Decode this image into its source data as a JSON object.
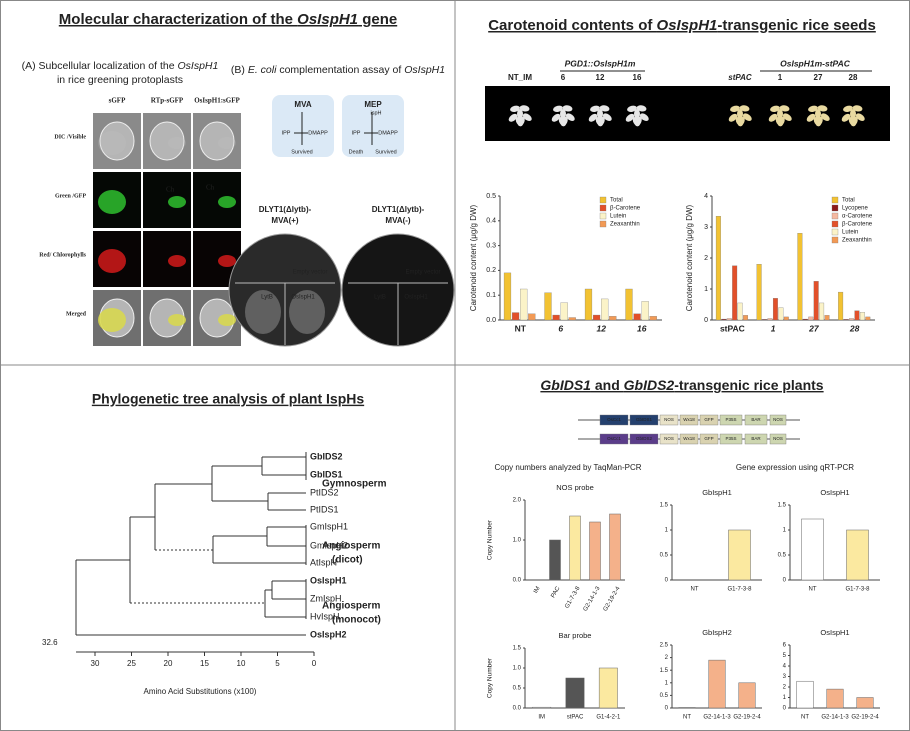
{
  "panels": {
    "characterization": {
      "title": [
        "Molecular characterization of the ",
        "OsIspH1",
        " gene"
      ],
      "localization": {
        "caption": [
          "(A) Subcellular localization of the ",
          "OsIspH1",
          "in rice greening protoplasts"
        ],
        "columns": [
          "sGFP",
          "RTp-sGFP",
          "OsIspH1:sGFP"
        ],
        "rows": [
          "DIC /Visible",
          "Green /GFP",
          "Red/ Chlorophylls",
          "Merged"
        ],
        "marker": "Ch"
      },
      "complementation": {
        "caption": [
          "(B) ",
          "E. coli",
          " complementation assay of ",
          "OsIspH1"
        ],
        "mva": {
          "name": "MVA",
          "texts": [
            "IPP",
            "DMAPP",
            "Survived"
          ]
        },
        "mep": {
          "name": "MEP",
          "texts": [
            "ispH",
            "IPP",
            "DMAPP",
            "Death",
            "Survived"
          ]
        },
        "plates": [
          {
            "label": [
              "DLYT1(Δlytb)-",
              "MVA(+)"
            ],
            "sectors": [
              "Empty vector",
              "LytB",
              "OsIspH1"
            ]
          },
          {
            "label": [
              "DLYT1(Δlytb)-",
              "MVA(-)"
            ],
            "sectors": [
              "Empty vector",
              "LytB",
              "OsIspH1"
            ]
          }
        ]
      }
    },
    "seeds": {
      "title": [
        "Carotenoid contents of ",
        "OsIspH1",
        "-transgenic rice seeds"
      ],
      "groups": [
        "PGD1::OsIspH1m",
        "OsIspH1m-stPAC"
      ],
      "lines": [
        "NT_IM",
        "6",
        "12",
        "16",
        "stPAC",
        "1",
        "27",
        "28"
      ]
    },
    "tree": {
      "title": "Phylogenetic tree analysis of plant IspHs",
      "leaves": [
        "GbIDS2",
        "GbIDS1",
        "PtIDS2",
        "PtIDS1",
        "GmIspH1",
        "GmIspH2",
        "AtIspH",
        "OsIspH1",
        "ZmIspH",
        "HvIspH",
        "OsIspH2"
      ],
      "groups": [
        {
          "name": "Gymnosperm"
        },
        {
          "name": "Angiosperm",
          "sub": "(dicot)"
        },
        {
          "name": "Angiosperm",
          "sub": "(monocot)"
        }
      ],
      "axis_ticks": [
        30,
        25,
        20,
        15,
        10,
        5,
        0
      ],
      "axis_label": "Amino Acid Substitutions (x100)",
      "root_label": "32.6"
    },
    "transgenic": {
      "title": [
        "GbIDS1",
        " and ",
        "GbIDS2",
        "-transgenic rice plants"
      ],
      "constructs": [
        [
          "OsCc1",
          "GbIDS1",
          "NOS",
          "Wx18",
          "GFP",
          "P35S",
          "BAR",
          "NOS"
        ],
        [
          "OsCc1",
          "GbIDS2",
          "NOS",
          "Wx18",
          "GFP",
          "P35S",
          "BAR",
          "NOS"
        ]
      ],
      "copy_title": "Copy numbers analyzed by TaqMan-PCR",
      "expression_title": "Gene expression using qRT-PCR"
    }
  },
  "chart_data": [
    {
      "type": "bar",
      "ylabel": "Carotenoid content (μg/g DW)",
      "categories": [
        "NT",
        "6",
        "12",
        "16"
      ],
      "series": [
        {
          "name": "Total",
          "color": "#f2c232",
          "values": [
            0.19,
            0.11,
            0.125,
            0.125
          ]
        },
        {
          "name": "β-Carotene",
          "color": "#e2502a",
          "values": [
            0.03,
            0.02,
            0.02,
            0.025
          ]
        },
        {
          "name": "Lutein",
          "color": "#fbf3c8",
          "values": [
            0.125,
            0.07,
            0.085,
            0.075
          ]
        },
        {
          "name": "Zeaxanthin",
          "color": "#f29a55",
          "values": [
            0.025,
            0.01,
            0.015,
            0.015
          ]
        }
      ],
      "ylim": [
        0,
        0.5
      ],
      "yticks": [
        {
          "value": 0,
          "label": "0.0"
        },
        0.1,
        0.2,
        0.3,
        0.4,
        0.5
      ]
    },
    {
      "type": "bar",
      "ylabel": "Carotenoid content (μg/g DW)",
      "categories": [
        "stPAC",
        "1",
        "27",
        "28"
      ],
      "series": [
        {
          "name": "Total",
          "color": "#f2c232",
          "values": [
            3.35,
            1.8,
            2.8,
            0.9
          ]
        },
        {
          "name": "Lycopene",
          "color": "#8b1a1a",
          "values": [
            0.03,
            0.02,
            0.03,
            0.02
          ]
        },
        {
          "name": "α-Carotene",
          "color": "#f5b8a0",
          "values": [
            0.05,
            0.05,
            0.1,
            0.05
          ]
        },
        {
          "name": "β-Carotene",
          "color": "#e2502a",
          "values": [
            1.75,
            0.7,
            1.25,
            0.3
          ]
        },
        {
          "name": "Lutein",
          "color": "#fbf3c8",
          "values": [
            0.55,
            0.4,
            0.55,
            0.25
          ]
        },
        {
          "name": "Zeaxanthin",
          "color": "#f29a55",
          "values": [
            0.15,
            0.1,
            0.15,
            0.1
          ]
        }
      ],
      "ylim": [
        0,
        4
      ],
      "yticks": [
        0,
        1,
        2,
        3,
        4
      ]
    },
    {
      "type": "bar",
      "title": "NOS probe",
      "ylabel": "Copy Number",
      "categories": [
        "IM",
        "PAC",
        "G1-7-3-8",
        "G2-14-1-3",
        "G2-19-2-4"
      ],
      "values": [
        0,
        1.0,
        1.6,
        1.45,
        1.65
      ],
      "colors": [
        "#ffffff",
        "#555555",
        "#fbe9a0",
        "#f4b18a",
        "#f4b18a"
      ],
      "ylim": [
        0,
        2
      ],
      "yticks": [
        {
          "value": 0,
          "label": "0.0"
        },
        {
          "value": 1,
          "label": "1.0"
        },
        {
          "value": 2,
          "label": "2.0"
        }
      ]
    },
    {
      "type": "bar",
      "title": "Bar probe",
      "ylabel": "Copy Number",
      "categories": [
        "IM",
        "stPAC",
        "G1-4-2-1"
      ],
      "values": [
        0.02,
        0.75,
        1.0
      ],
      "colors": [
        "#ffffff",
        "#555555",
        "#fbe9a0"
      ],
      "ylim": [
        0,
        1.5
      ],
      "yticks": [
        {
          "value": 0,
          "label": "0.0"
        },
        0.5,
        {
          "value": 1,
          "label": "1.0"
        },
        1.5
      ]
    },
    {
      "type": "bar",
      "title": "GbIspH1",
      "categories": [
        "NT",
        "G1-7-3-8"
      ],
      "values": [
        0,
        1.0
      ],
      "colors": [
        "#ffffff",
        "#fbe9a0"
      ],
      "ylim": [
        0,
        1.5
      ],
      "yticks": [
        0,
        0.5,
        1,
        1.5
      ]
    },
    {
      "type": "bar",
      "title": "OsIspH1",
      "categories": [
        "NT",
        "G1-7-3-8"
      ],
      "values": [
        1.22,
        1.0
      ],
      "colors": [
        "#ffffff",
        "#fbe9a0"
      ],
      "ylim": [
        0,
        1.5
      ],
      "yticks": [
        0,
        0.5,
        1,
        1.5
      ]
    },
    {
      "type": "bar",
      "title": "GbIspH2",
      "categories": [
        "NT",
        "G2-14-1-3",
        "G2-19-2-4"
      ],
      "values": [
        0.02,
        1.9,
        1.0
      ],
      "colors": [
        "#ffffff",
        "#f4b18a",
        "#f4b18a"
      ],
      "ylim": [
        0,
        2.5
      ],
      "yticks": [
        0,
        0.5,
        1,
        1.5,
        2,
        2.5
      ]
    },
    {
      "type": "bar",
      "title": "OsIspH1",
      "categories": [
        "NT",
        "G2-14-1-3",
        "G2-19-2-4"
      ],
      "values": [
        2.55,
        1.8,
        1.0
      ],
      "colors": [
        "#ffffff",
        "#f4b18a",
        "#f4b18a"
      ],
      "ylim": [
        0,
        6
      ],
      "yticks": [
        0,
        1,
        2,
        3,
        4,
        5,
        6
      ]
    }
  ]
}
